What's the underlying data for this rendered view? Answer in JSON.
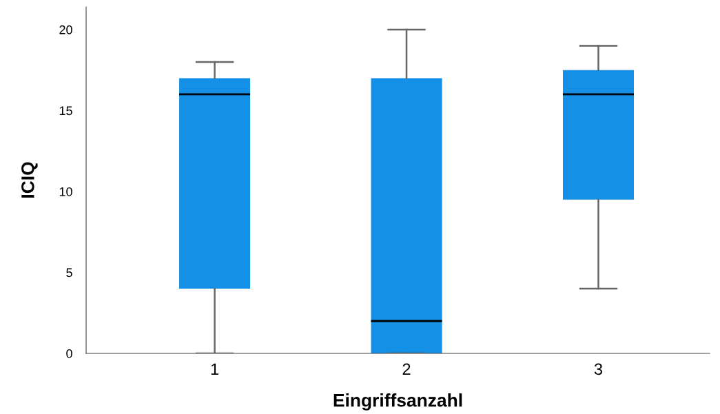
{
  "chart_data": {
    "type": "box",
    "xlabel": "Eingriffsanzahl",
    "ylabel": "ICIQ",
    "categories": [
      "1",
      "2",
      "3"
    ],
    "boxes": [
      {
        "low": 0,
        "q1": 4,
        "median": 16,
        "q3": 17,
        "high": 18
      },
      {
        "low": 0,
        "q1": 0,
        "median": 2,
        "q3": 17,
        "high": 20
      },
      {
        "low": 4,
        "q1": 9.5,
        "median": 16,
        "q3": 17.5,
        "high": 19
      }
    ],
    "color": "#1490e6",
    "ylim": [
      0,
      21.4
    ],
    "yticks": [
      0,
      5,
      10,
      15,
      20
    ],
    "grid": false
  }
}
